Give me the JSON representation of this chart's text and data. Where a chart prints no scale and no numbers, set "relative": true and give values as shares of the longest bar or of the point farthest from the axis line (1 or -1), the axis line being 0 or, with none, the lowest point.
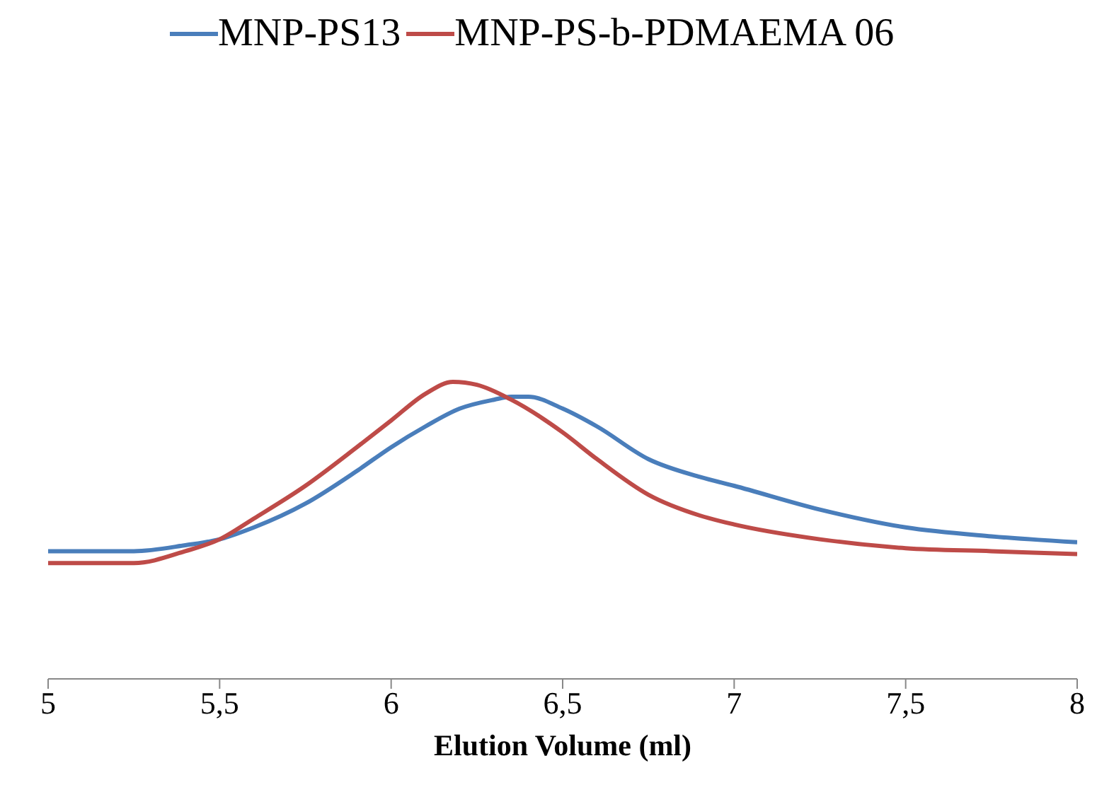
{
  "chart_data": {
    "type": "line",
    "xlabel": "Elution Volume (ml)",
    "relative": true,
    "legend": "top",
    "grid": false,
    "marker": "none",
    "line_style": "solid",
    "xlim": [
      5,
      8
    ],
    "xticks": [
      5,
      {
        "value": 5.5,
        "label": "5,5"
      },
      6,
      {
        "value": 6.5,
        "label": "6,5"
      },
      7,
      {
        "value": 7.5,
        "label": "7,5"
      },
      8
    ],
    "x": [
      5,
      5.25,
      5.4,
      5.5,
      5.6,
      5.75,
      5.9,
      6.0,
      6.1,
      6.2,
      6.3,
      6.35,
      6.4,
      6.5,
      6.6,
      6.75,
      6.9,
      7.0,
      7.25,
      7.5,
      7.75,
      8
    ],
    "series": [
      {
        "name": "MNP-PS13",
        "color": "#4a7ebb",
        "values": [
          0.43,
          0.43,
          0.45,
          0.47,
          0.51,
          0.59,
          0.7,
          0.78,
          0.85,
          0.91,
          0.94,
          0.95,
          0.95,
          0.91,
          0.85,
          0.74,
          0.68,
          0.65,
          0.57,
          0.51,
          0.48,
          0.46
        ]
      },
      {
        "name": "MNP-PS-b-PDMAEMA 06",
        "color": "#be4b48",
        "x": [
          5,
          5.25,
          5.4,
          5.5,
          5.6,
          5.75,
          5.9,
          6.0,
          6.1,
          6.18,
          6.25,
          6.35,
          6.5,
          6.6,
          6.75,
          6.9,
          7.0,
          7.25,
          7.5,
          7.75,
          8
        ],
        "values": [
          0.39,
          0.39,
          0.43,
          0.47,
          0.54,
          0.65,
          0.78,
          0.87,
          0.96,
          1,
          0.99,
          0.94,
          0.83,
          0.74,
          0.62,
          0.55,
          0.52,
          0.47,
          0.44,
          0.43,
          0.42
        ]
      }
    ]
  }
}
